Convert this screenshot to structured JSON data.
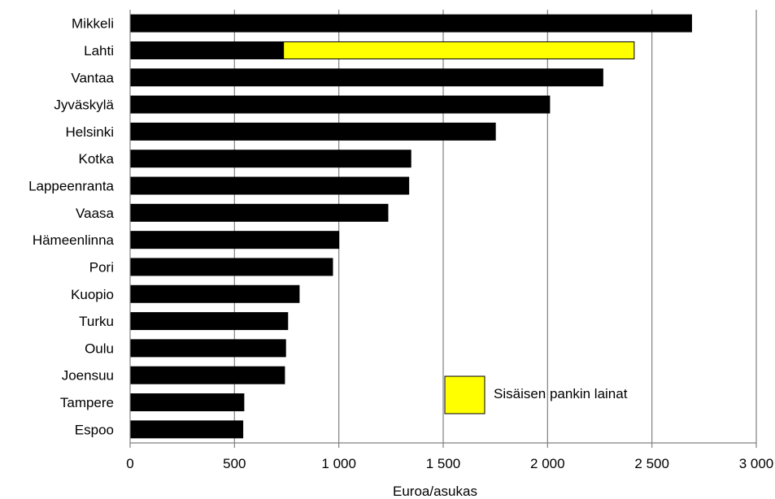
{
  "chart_data": {
    "type": "bar",
    "orientation": "horizontal",
    "stacked": true,
    "categories": [
      "Mikkeli",
      "Lahti",
      "Vantaa",
      "Jyväskylä",
      "Helsinki",
      "Kotka",
      "Lappeenranta",
      "Vaasa",
      "Hämeenlinna",
      "Pori",
      "Kuopio",
      "Turku",
      "Oulu",
      "Joensuu",
      "Tampere",
      "Espoo"
    ],
    "series": [
      {
        "color": "#000000",
        "values": [
          2690,
          735,
          2265,
          2010,
          1750,
          1345,
          1335,
          1235,
          1000,
          970,
          810,
          755,
          745,
          740,
          545,
          540
        ]
      },
      {
        "name": "Sisäisen pankin lainat",
        "color": "#FFFF00",
        "values": [
          0,
          1680,
          0,
          0,
          0,
          0,
          0,
          0,
          0,
          0,
          0,
          0,
          0,
          0,
          0,
          0
        ]
      }
    ],
    "xlabel": "Euroa/asukas",
    "xlim": [
      0,
      3000
    ],
    "xticks": [
      0,
      500,
      1000,
      1500,
      2000,
      2500,
      3000
    ],
    "xtick_labels": [
      "0",
      "500",
      "1 000",
      "1 500",
      "2 000",
      "2 500",
      "3 000"
    ],
    "grid": "vertical",
    "legend_position": "bottom-right inside plot"
  }
}
